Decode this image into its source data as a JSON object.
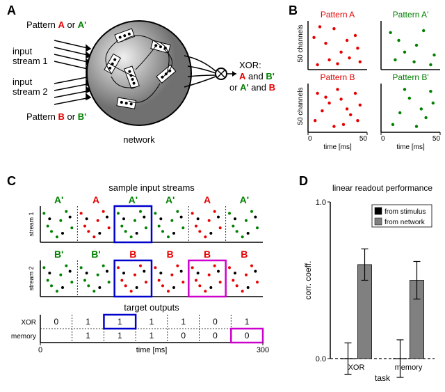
{
  "panelA": {
    "label": "A",
    "inputStream1": "input\nstream 1",
    "inputStream2": "input\nstream 2",
    "pattern1_prefix": "Pattern ",
    "pattern1_A": "A",
    "pattern1_or": " or ",
    "pattern1_Ap": "A'",
    "pattern2_prefix": "Pattern ",
    "pattern2_B": "B",
    "pattern2_or": " or ",
    "pattern2_Bp": "B'",
    "network_label": "network",
    "xor_label": "XOR:",
    "xor_line1_A": "A",
    "xor_line1_and": " and ",
    "xor_line1_Bp": "B'",
    "xor_line2_or": "or ",
    "xor_line2_Ap": "A'",
    "xor_line2_and": " and ",
    "xor_line2_B": "B",
    "colors": {
      "red": "#e60000",
      "green": "#008000",
      "black": "#000000"
    }
  },
  "panelB": {
    "label": "B",
    "ylab": "50 channels",
    "xlab": "time [ms]",
    "xticks": [
      "0",
      "50"
    ],
    "patterns": [
      {
        "title": "Pattern A",
        "color": "#e60000",
        "dots": [
          [
            8,
            5
          ],
          [
            22,
            42
          ],
          [
            35,
            12
          ],
          [
            40,
            35
          ],
          [
            15,
            27
          ],
          [
            28,
            18
          ],
          [
            44,
            8
          ],
          [
            10,
            44
          ],
          [
            33,
            30
          ],
          [
            18,
            10
          ],
          [
            5,
            33
          ],
          [
            42,
            22
          ],
          [
            25,
            6
          ]
        ]
      },
      {
        "title": "Pattern A'",
        "color": "#008000",
        "dots": [
          [
            12,
            10
          ],
          [
            30,
            25
          ],
          [
            42,
            5
          ],
          [
            8,
            38
          ],
          [
            20,
            18
          ],
          [
            36,
            40
          ],
          [
            45,
            15
          ],
          [
            15,
            30
          ],
          [
            28,
            8
          ]
        ]
      },
      {
        "title": "Pattern B",
        "color": "#e60000",
        "dots": [
          [
            6,
            12
          ],
          [
            18,
            30
          ],
          [
            30,
            8
          ],
          [
            40,
            40
          ],
          [
            12,
            22
          ],
          [
            25,
            44
          ],
          [
            36,
            18
          ],
          [
            44,
            28
          ],
          [
            8,
            40
          ],
          [
            22,
            6
          ],
          [
            15,
            36
          ],
          [
            33,
            24
          ],
          [
            42,
            12
          ],
          [
            28,
            34
          ]
        ]
      },
      {
        "title": "Pattern B'",
        "color": "#008000",
        "dots": [
          [
            10,
            8
          ],
          [
            24,
            35
          ],
          [
            38,
            15
          ],
          [
            42,
            42
          ],
          [
            16,
            20
          ],
          [
            30,
            6
          ],
          [
            44,
            30
          ],
          [
            20,
            44
          ],
          [
            34,
            24
          ]
        ]
      }
    ]
  },
  "panelC": {
    "label": "C",
    "title": "sample input streams",
    "segments": {
      "stream1": [
        "A'",
        "A",
        "A'",
        "A'",
        "A",
        "A'"
      ],
      "stream2": [
        "B'",
        "B'",
        "B",
        "B",
        "B",
        "B"
      ]
    },
    "seg_colors": {
      "A": "#e60000",
      "A'": "#008000",
      "B": "#e60000",
      "B'": "#008000"
    },
    "stream1_label": "stream 1",
    "stream2_label": "stream 2",
    "target_title": "target outputs",
    "xor_label": "XOR",
    "mem_label": "memory",
    "xor_vals": [
      "0",
      "1",
      "1",
      "1",
      "1",
      "0",
      "1"
    ],
    "mem_vals": [
      "",
      "1",
      "1",
      "1",
      "0",
      "0",
      "0"
    ],
    "xlab": "time [ms]",
    "xticks": [
      "0",
      "300"
    ],
    "box_blue_color": "#0000cc",
    "box_magenta_color": "#cc00cc",
    "noise_color": "#000000"
  },
  "panelD": {
    "label": "D",
    "title": "linear readout performance",
    "ylab": "corr. coeff.",
    "xlab": "task",
    "legend": [
      {
        "label": "from stimulus",
        "color": "#000000"
      },
      {
        "label": "from network",
        "color": "#808080"
      }
    ],
    "yticks": [
      "0.0",
      "1.0"
    ],
    "xticks": [
      "XOR",
      "memory"
    ],
    "bars": {
      "xor_stim": {
        "h": 0.0,
        "err": 0.1,
        "color": "#000000"
      },
      "xor_net": {
        "h": 0.6,
        "err": 0.1,
        "color": "#808080"
      },
      "mem_stim": {
        "h": 0.0,
        "err": 0.12,
        "color": "#000000"
      },
      "mem_net": {
        "h": 0.5,
        "err": 0.12,
        "color": "#808080"
      }
    }
  }
}
